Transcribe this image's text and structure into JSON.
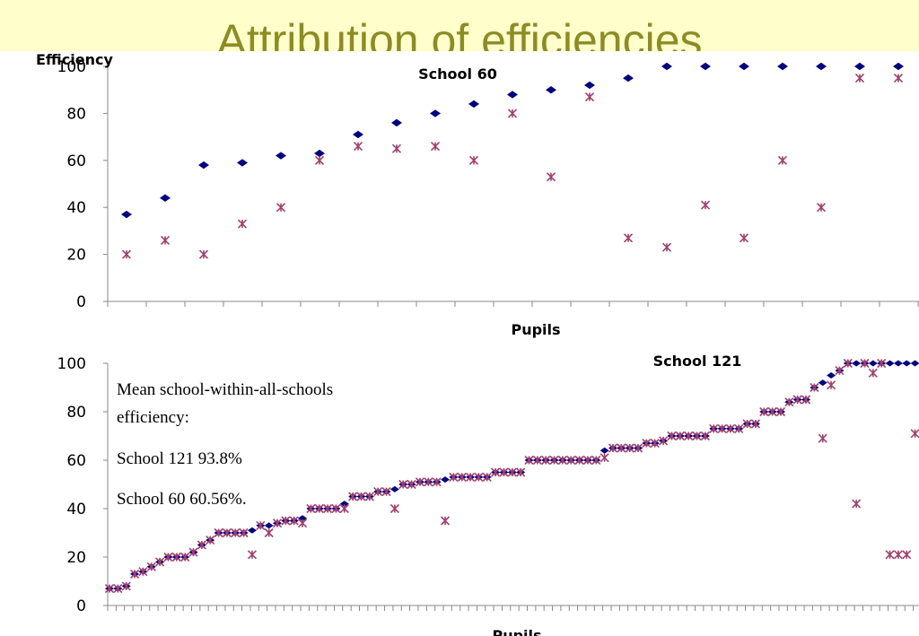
{
  "title": "Attribution of efficiencies",
  "chart_data": [
    {
      "type": "scatter",
      "title": "School 60",
      "y_label": "Efficiency",
      "x_label": "Pupils",
      "ylim": [
        0,
        100
      ],
      "yticks": [
        0,
        20,
        40,
        60,
        80,
        100
      ],
      "series": [
        {
          "marker": "diamond",
          "color": "#000080",
          "values": [
            37,
            44,
            58,
            59,
            62,
            63,
            71,
            76,
            80,
            84,
            88,
            90,
            92,
            95,
            100,
            100,
            100,
            100,
            100,
            100,
            100
          ]
        },
        {
          "marker": "star",
          "color": "#a0406e",
          "values": [
            20,
            26,
            20,
            33,
            40,
            60,
            66,
            65,
            66,
            60,
            80,
            53,
            87,
            27,
            23,
            41,
            27,
            60,
            40,
            95,
            95
          ]
        }
      ]
    },
    {
      "type": "scatter",
      "title": "School 121",
      "x_label": "Pupils",
      "ylim": [
        0,
        100
      ],
      "yticks": [
        0,
        20,
        40,
        60,
        80,
        100
      ],
      "annotation": [
        "Mean school-within-all-schools",
        "efficiency:",
        "School 121  93.8%",
        "School 60  60.56%."
      ],
      "series": [
        {
          "marker": "diamond",
          "color": "#000080",
          "values": [
            7,
            7,
            8,
            13,
            14,
            16,
            18,
            20,
            20,
            20,
            22,
            25,
            27,
            30,
            30,
            30,
            30,
            31,
            33,
            33,
            34,
            35,
            35,
            36,
            40,
            40,
            40,
            40,
            42,
            45,
            45,
            45,
            47,
            47,
            48,
            50,
            50,
            51,
            51,
            51,
            52,
            53,
            53,
            53,
            53,
            53,
            55,
            55,
            55,
            55,
            60,
            60,
            60,
            60,
            60,
            60,
            60,
            60,
            60,
            64,
            65,
            65,
            65,
            65,
            67,
            67,
            68,
            70,
            70,
            70,
            70,
            70,
            73,
            73,
            73,
            73,
            75,
            75,
            80,
            80,
            80,
            84,
            85,
            85,
            90,
            92,
            95,
            97,
            100,
            100,
            100,
            100,
            100,
            100,
            100,
            100,
            100
          ]
        },
        {
          "marker": "star",
          "color": "#a0406e",
          "values": [
            7,
            7,
            8,
            13,
            14,
            16,
            18,
            20,
            20,
            20,
            22,
            25,
            27,
            30,
            30,
            30,
            30,
            21,
            33,
            30,
            34,
            35,
            35,
            34,
            40,
            40,
            40,
            40,
            40,
            45,
            45,
            45,
            47,
            47,
            40,
            50,
            50,
            51,
            51,
            51,
            35,
            53,
            53,
            53,
            53,
            53,
            55,
            55,
            55,
            55,
            60,
            60,
            60,
            60,
            60,
            60,
            60,
            60,
            60,
            61,
            65,
            65,
            65,
            65,
            67,
            67,
            68,
            70,
            70,
            70,
            70,
            70,
            73,
            73,
            73,
            73,
            75,
            75,
            80,
            80,
            80,
            84,
            85,
            85,
            90,
            69,
            91,
            97,
            100,
            42,
            100,
            96,
            100,
            21,
            21,
            21,
            71
          ]
        }
      ]
    }
  ]
}
